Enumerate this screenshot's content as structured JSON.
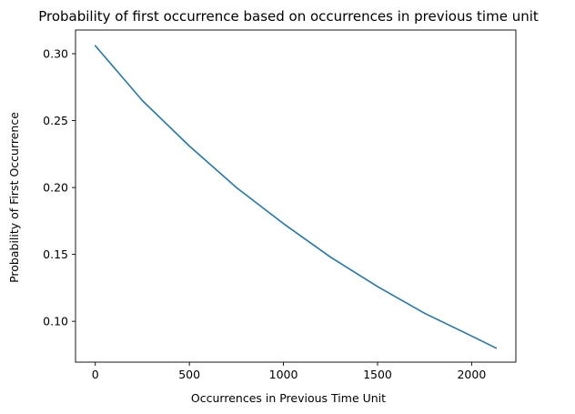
{
  "chart_data": {
    "type": "line",
    "title": "Probability of first occurrence based on occurrences in previous time unit",
    "xlabel": "Occurrences in Previous Time Unit",
    "ylabel": "Probability of First Occurrence",
    "xlim": [
      -105,
      2235
    ],
    "ylim": [
      0.0695,
      0.3177
    ],
    "xticks": [
      0,
      500,
      1000,
      1500,
      2000
    ],
    "yticks": [
      0.1,
      0.15,
      0.2,
      0.25,
      0.3
    ],
    "xtick_labels": [
      "0",
      "500",
      "1000",
      "1500",
      "2000"
    ],
    "ytick_labels": [
      "0.10",
      "0.15",
      "0.20",
      "0.25",
      "0.30"
    ],
    "grid": false,
    "series": [
      {
        "color": "#1f77b4",
        "x": [
          0,
          250,
          500,
          750,
          1000,
          1250,
          1500,
          1750,
          2000,
          2130
        ],
        "y": [
          0.306,
          0.265,
          0.231,
          0.2,
          0.173,
          0.148,
          0.126,
          0.106,
          0.089,
          0.08
        ]
      }
    ]
  }
}
